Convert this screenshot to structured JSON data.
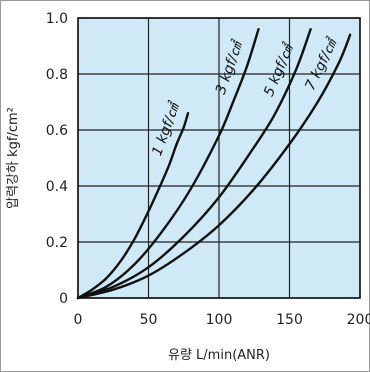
{
  "chart_data": {
    "type": "line",
    "xlabel": "유량 L/min(ANR)",
    "ylabel": "압력강하 kgf/cm²",
    "xlim": [
      0,
      200
    ],
    "ylim": [
      0,
      1.0
    ],
    "x_ticks": [
      "0",
      "50",
      "100",
      "150",
      "200"
    ],
    "y_ticks": [
      "0",
      "0.2",
      "0.4",
      "0.6",
      "0.8",
      "1.0"
    ],
    "x_tick_values": [
      0,
      50,
      100,
      150,
      200
    ],
    "y_tick_values": [
      0,
      0.2,
      0.4,
      0.6,
      0.8,
      1.0
    ],
    "grid": true,
    "background_color": "#cfeaf6",
    "line_color": "#111111",
    "series": [
      {
        "name": "1 kgf/㎠",
        "x": [
          0,
          10,
          20,
          30,
          40,
          50,
          60,
          65,
          70,
          75,
          78
        ],
        "y": [
          0,
          0.03,
          0.07,
          0.13,
          0.21,
          0.31,
          0.42,
          0.48,
          0.55,
          0.61,
          0.66
        ]
      },
      {
        "name": "3 kgf/㎠",
        "x": [
          0,
          20,
          40,
          60,
          80,
          100,
          110,
          120,
          128
        ],
        "y": [
          0,
          0.04,
          0.12,
          0.24,
          0.39,
          0.58,
          0.7,
          0.83,
          0.96
        ]
      },
      {
        "name": "5 kgf/㎠",
        "x": [
          0,
          25,
          50,
          75,
          100,
          125,
          140,
          155,
          165
        ],
        "y": [
          0,
          0.04,
          0.11,
          0.22,
          0.36,
          0.54,
          0.66,
          0.82,
          0.96
        ]
      },
      {
        "name": "7 kgf/㎠",
        "x": [
          0,
          25,
          50,
          75,
          100,
          125,
          150,
          170,
          185,
          193
        ],
        "y": [
          0,
          0.03,
          0.08,
          0.16,
          0.26,
          0.39,
          0.55,
          0.7,
          0.84,
          0.94
        ]
      }
    ]
  }
}
